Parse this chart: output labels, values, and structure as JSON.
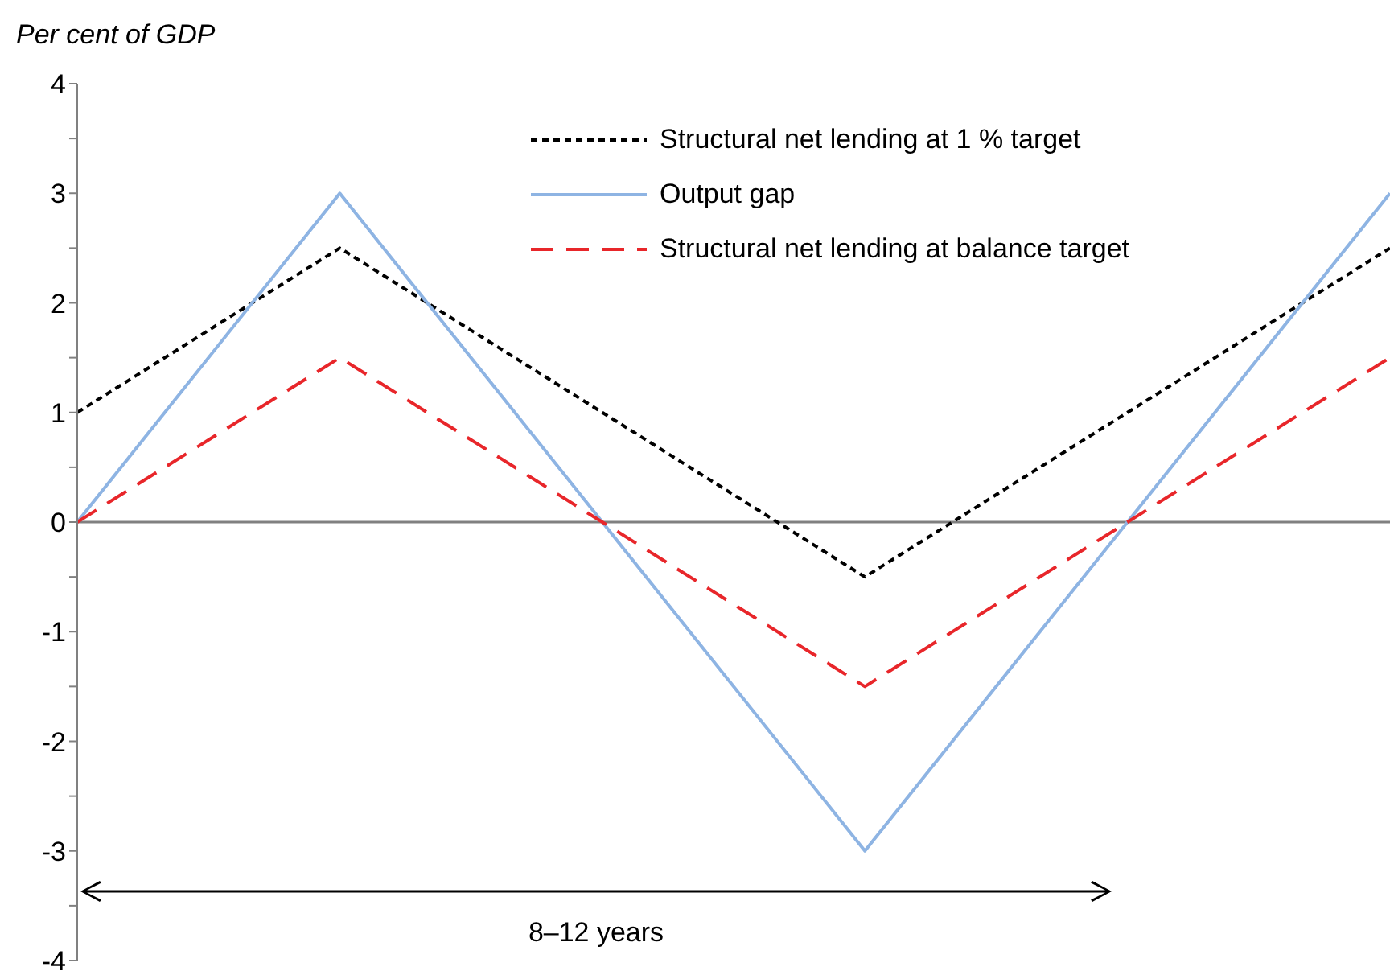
{
  "chart_data": {
    "type": "line",
    "ylabel": "Per cent of GDP",
    "categories": [
      null,
      null,
      null,
      null,
      null,
      null
    ],
    "series": [
      {
        "name": "Structural net lending at 1 % target",
        "color": "#000000",
        "line_style": "dotted",
        "values": [
          1,
          2.5,
          1,
          -0.5,
          1,
          2.5
        ]
      },
      {
        "name": "Output gap",
        "color": "#8eb4e3",
        "line_style": "solid",
        "values": [
          0,
          3,
          0,
          -3,
          0,
          3
        ]
      },
      {
        "name": "Structural net lending at balance target",
        "color": "#e8262a",
        "line_style": "dashed",
        "values": [
          0,
          1.5,
          0,
          -1.5,
          0,
          1.5
        ]
      }
    ],
    "ylim": [
      -4,
      4
    ],
    "yticks": [
      -4,
      {
        "value": -3.5,
        "label": null
      },
      -3,
      {
        "value": -2.5,
        "label": null
      },
      -2,
      {
        "value": -1.5,
        "label": null
      },
      -1,
      {
        "value": -0.5,
        "label": null
      },
      0,
      {
        "value": 0.5,
        "label": null
      },
      1,
      {
        "value": 1.5,
        "label": null
      },
      2,
      {
        "value": 2.5,
        "label": null
      },
      3,
      {
        "value": 3.5,
        "label": null
      },
      4
    ],
    "ref_lines": [
      {
        "axis": "y",
        "value": 0,
        "color": "#808080"
      }
    ],
    "annotations": [
      "8–12 years"
    ],
    "tick_labels": "y",
    "legend": "top right",
    "grid": false,
    "marker": "none"
  }
}
